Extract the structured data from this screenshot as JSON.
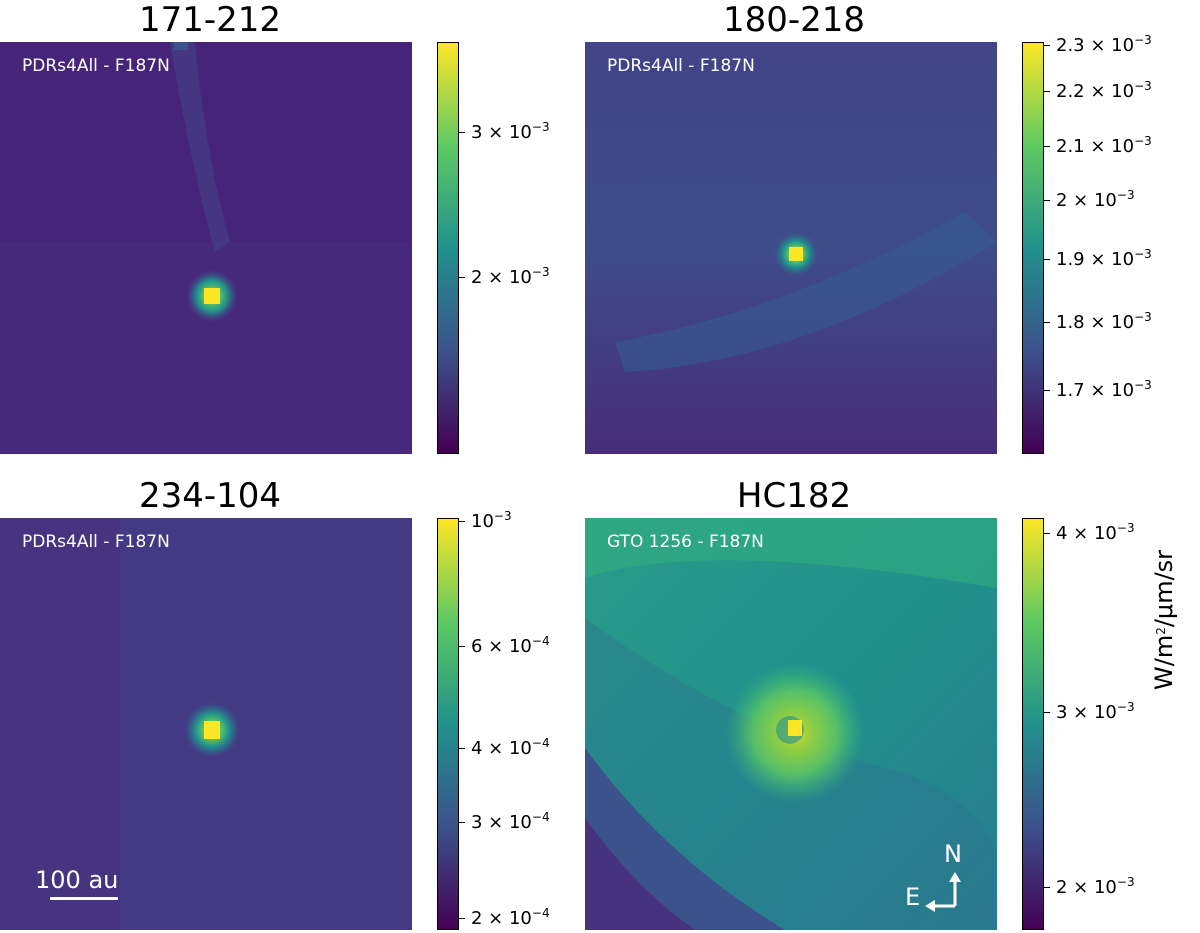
{
  "panels": [
    {
      "title": "171-212",
      "label": "PDRs4All - F187N",
      "colorbar_ticks": [
        {
          "label": "3 × 10",
          "exp": "−3"
        },
        {
          "label": "2 × 10",
          "exp": "−3"
        }
      ]
    },
    {
      "title": "180-218",
      "label": "PDRs4All - F187N",
      "colorbar_ticks": [
        {
          "label": "2.3 × 10",
          "exp": "−3"
        },
        {
          "label": "2.2 × 10",
          "exp": "−3"
        },
        {
          "label": "2.1 × 10",
          "exp": "−3"
        },
        {
          "label": "2 × 10",
          "exp": "−3"
        },
        {
          "label": "1.9 × 10",
          "exp": "−3"
        },
        {
          "label": "1.8 × 10",
          "exp": "−3"
        },
        {
          "label": "1.7 × 10",
          "exp": "−3"
        }
      ]
    },
    {
      "title": "234-104",
      "label": "PDRs4All - F187N",
      "colorbar_ticks": [
        {
          "label": "10",
          "exp": "−3"
        },
        {
          "label": "6 × 10",
          "exp": "−4"
        },
        {
          "label": "4 × 10",
          "exp": "−4"
        },
        {
          "label": "3 × 10",
          "exp": "−4"
        },
        {
          "label": "2 × 10",
          "exp": "−4"
        }
      ]
    },
    {
      "title": "HC182",
      "label": "GTO 1256 - F187N",
      "colorbar_ticks": [
        {
          "label": "4 × 10",
          "exp": "−3"
        },
        {
          "label": "3 × 10",
          "exp": "−3"
        },
        {
          "label": "2 × 10",
          "exp": "−3"
        }
      ]
    }
  ],
  "unit_label": "W/m",
  "unit_exp": "2",
  "unit_suffix": "/μm/sr",
  "scale_bar": "100 au",
  "compass": {
    "north": "N",
    "east": "E"
  },
  "colormap": "viridis",
  "chart_data": [
    {
      "type": "heatmap",
      "title": "171-212",
      "annotation": "PDRs4All - F187N",
      "scale": "log",
      "colorbar_range": [
        0.0013,
        0.0037
      ],
      "colorbar_ticks": [
        0.003,
        0.002
      ],
      "features": "point source at center, faint tail extending up"
    },
    {
      "type": "heatmap",
      "title": "180-218",
      "annotation": "PDRs4All - F187N",
      "scale": "log",
      "colorbar_range": [
        0.00161,
        0.0023
      ],
      "colorbar_ticks": [
        0.0023,
        0.0022,
        0.0021,
        0.002,
        0.0019,
        0.0018,
        0.0017
      ],
      "features": "point source at center, faint arc below"
    },
    {
      "type": "heatmap",
      "title": "234-104",
      "annotation": "PDRs4All - F187N",
      "scale": "log",
      "colorbar_range": [
        0.00019,
        0.001
      ],
      "colorbar_ticks": [
        0.001,
        0.0006,
        0.0004,
        0.0003,
        0.0002
      ],
      "features": "point source at center"
    },
    {
      "type": "heatmap",
      "title": "HC182",
      "annotation": "GTO 1256 - F187N",
      "scale": "log",
      "colorbar_range": [
        0.0018,
        0.0042
      ],
      "colorbar_ticks": [
        0.004,
        0.003,
        0.002
      ],
      "features": "point source at center with ring-like envelope, bright diffuse nebula"
    }
  ]
}
